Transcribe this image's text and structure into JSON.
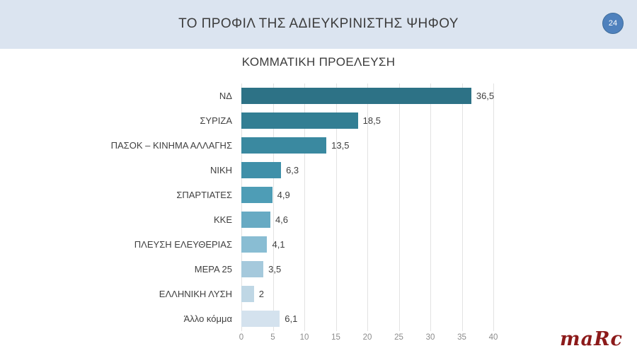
{
  "page": {
    "title": "ΤΟ ΠΡΟΦΙΛ ΤΗΣ ΑΔΙΕΥΚΡΙΝΙΣΤΗΣ ΨΗΦΟΥ",
    "page_number": "24",
    "logo_text": "maRc"
  },
  "colors": {
    "background": "#ffffff",
    "header_band": "#dbe4f0",
    "page_circle_fill": "#4f81bd",
    "page_circle_border": "#3f6d9c",
    "title_text": "#3c3c3c",
    "label_text": "#404040",
    "tick_text": "#8c8c8c",
    "gridline": "#e2e2e2",
    "logo": "#8c1a1a"
  },
  "chart_data": {
    "type": "bar",
    "orientation": "horizontal",
    "title": "ΚΟΜΜΑΤΙΚΗ ΠΡΟΕΛΕΥΣΗ",
    "categories": [
      "ΝΔ",
      "ΣΥΡΙΖΑ",
      "ΠΑΣΟΚ – ΚΙΝΗΜΑ ΑΛΛΑΓΗΣ",
      "ΝΙΚΗ",
      "ΣΠΑΡΤΙΑΤΕΣ",
      "ΚΚΕ",
      "ΠΛΕΥΣΗ ΕΛΕΥΘΕΡΙΑΣ",
      "ΜΕΡΑ 25",
      "ΕΛΛΗΝΙΚΗ ΛΥΣΗ",
      "Άλλο κόμμα"
    ],
    "values": [
      36.5,
      18.5,
      13.5,
      6.3,
      4.9,
      4.6,
      4.1,
      3.5,
      2,
      6.1
    ],
    "value_labels": [
      "36,5",
      "18,5",
      "13,5",
      "6,3",
      "4,9",
      "4,6",
      "4,1",
      "3,5",
      "2",
      "6,1"
    ],
    "bar_colors": [
      "#2d7286",
      "#327e93",
      "#3a89a0",
      "#3f90a9",
      "#4e9db6",
      "#67aac3",
      "#89bdd3",
      "#a5c9dc",
      "#bfd7e5",
      "#d4e2ee"
    ],
    "xlim": [
      0,
      40
    ],
    "x_ticks": [
      0,
      5,
      10,
      15,
      20,
      25,
      30,
      35,
      40
    ],
    "x_tick_labels": [
      "0",
      "5",
      "10",
      "15",
      "20",
      "25",
      "30",
      "35",
      "40"
    ],
    "grid": "vertical",
    "legend": "none",
    "xlabel": "",
    "ylabel": ""
  }
}
